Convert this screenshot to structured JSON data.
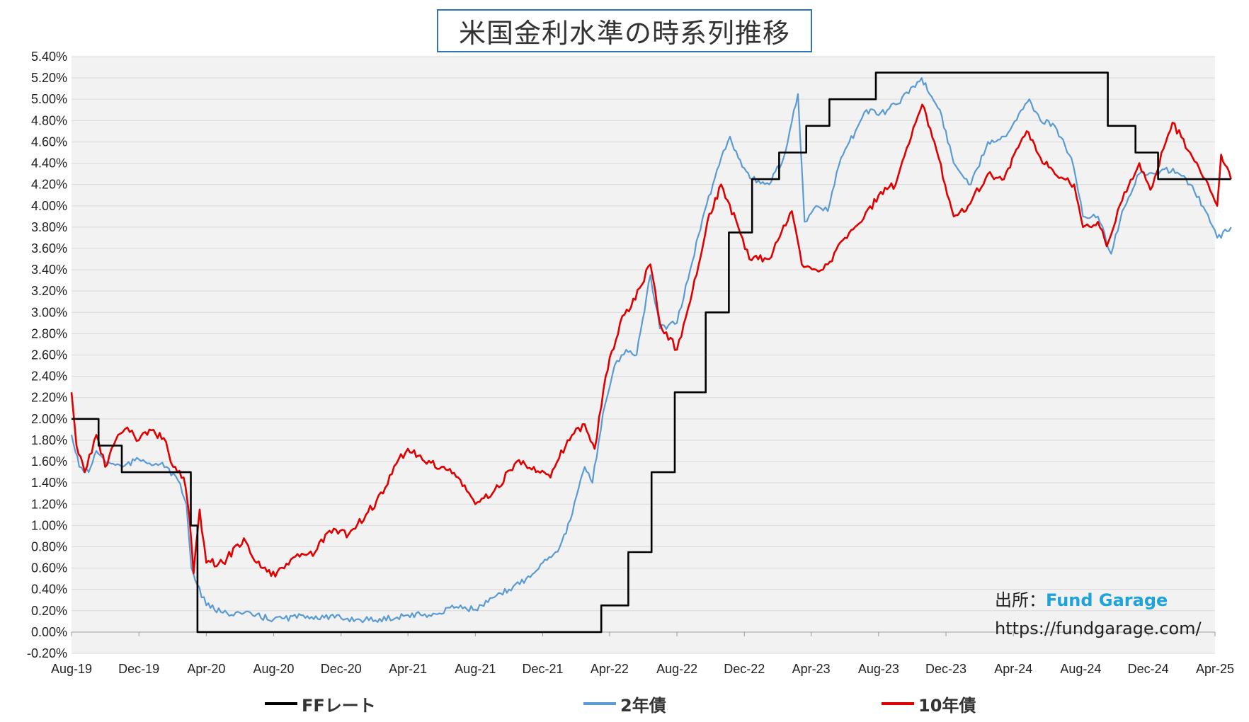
{
  "chart_data": {
    "type": "line",
    "title": "米国金利水準の時系列推移",
    "y_ticks": [
      "5.40%",
      "5.20%",
      "5.00%",
      "4.80%",
      "4.60%",
      "4.40%",
      "4.20%",
      "4.00%",
      "3.80%",
      "3.60%",
      "3.40%",
      "3.20%",
      "3.00%",
      "2.80%",
      "2.60%",
      "2.40%",
      "2.20%",
      "2.00%",
      "1.80%",
      "1.60%",
      "1.40%",
      "1.20%",
      "1.00%",
      "0.80%",
      "0.60%",
      "0.40%",
      "0.20%",
      "0.00%",
      "-0.20%"
    ],
    "x_ticks": [
      "Aug-19",
      "Dec-19",
      "Apr-20",
      "Aug-20",
      "Dec-20",
      "Apr-21",
      "Aug-21",
      "Dec-21",
      "Apr-22",
      "Aug-22",
      "Dec-22",
      "Apr-23",
      "Aug-23",
      "Dec-23",
      "Apr-24",
      "Aug-24",
      "Dec-24",
      "Apr-25"
    ],
    "ylim": [
      -0.2,
      5.4
    ],
    "x_range": [
      "2019-08",
      "2025-04"
    ],
    "grid": true,
    "legend_position": "bottom",
    "series": [
      {
        "name": "FFレート",
        "color": "#000000",
        "shape": "step",
        "points": [
          [
            "2019-08-01",
            2.0
          ],
          [
            "2019-09-19",
            1.75
          ],
          [
            "2019-10-31",
            1.5
          ],
          [
            "2020-03-04",
            1.0
          ],
          [
            "2020-03-16",
            0.0
          ],
          [
            "2022-03-17",
            0.25
          ],
          [
            "2022-05-05",
            0.75
          ],
          [
            "2022-06-16",
            1.5
          ],
          [
            "2022-07-28",
            2.25
          ],
          [
            "2022-09-22",
            3.0
          ],
          [
            "2022-11-03",
            3.75
          ],
          [
            "2022-12-15",
            4.25
          ],
          [
            "2023-02-02",
            4.5
          ],
          [
            "2023-03-23",
            4.75
          ],
          [
            "2023-05-04",
            5.0
          ],
          [
            "2023-07-27",
            5.25
          ],
          [
            "2024-09-19",
            4.75
          ],
          [
            "2024-11-08",
            4.5
          ],
          [
            "2024-12-19",
            4.25
          ],
          [
            "2025-04-30",
            4.25
          ]
        ]
      },
      {
        "name": "2年債",
        "color": "#5b9bd5",
        "shape": "line",
        "points": [
          [
            "2019-08-01",
            1.85
          ],
          [
            "2019-08-15",
            1.55
          ],
          [
            "2019-09-01",
            1.5
          ],
          [
            "2019-09-15",
            1.7
          ],
          [
            "2019-10-01",
            1.6
          ],
          [
            "2019-10-15",
            1.58
          ],
          [
            "2019-11-01",
            1.55
          ],
          [
            "2019-12-01",
            1.62
          ],
          [
            "2020-01-01",
            1.58
          ],
          [
            "2020-01-20",
            1.55
          ],
          [
            "2020-02-10",
            1.42
          ],
          [
            "2020-02-25",
            1.2
          ],
          [
            "2020-03-05",
            0.6
          ],
          [
            "2020-03-15",
            0.45
          ],
          [
            "2020-04-01",
            0.25
          ],
          [
            "2020-05-01",
            0.18
          ],
          [
            "2020-06-01",
            0.18
          ],
          [
            "2020-08-01",
            0.12
          ],
          [
            "2020-10-01",
            0.15
          ],
          [
            "2020-12-01",
            0.13
          ],
          [
            "2021-02-01",
            0.11
          ],
          [
            "2021-04-01",
            0.16
          ],
          [
            "2021-06-01",
            0.17
          ],
          [
            "2021-06-20",
            0.25
          ],
          [
            "2021-08-01",
            0.21
          ],
          [
            "2021-10-01",
            0.4
          ],
          [
            "2021-11-01",
            0.5
          ],
          [
            "2021-12-01",
            0.65
          ],
          [
            "2022-01-01",
            0.8
          ],
          [
            "2022-01-20",
            1.05
          ],
          [
            "2022-02-15",
            1.55
          ],
          [
            "2022-03-01",
            1.4
          ],
          [
            "2022-03-20",
            2.05
          ],
          [
            "2022-04-10",
            2.5
          ],
          [
            "2022-05-01",
            2.65
          ],
          [
            "2022-05-20",
            2.6
          ],
          [
            "2022-06-14",
            3.35
          ],
          [
            "2022-07-01",
            2.85
          ],
          [
            "2022-08-01",
            2.9
          ],
          [
            "2022-08-25",
            3.4
          ],
          [
            "2022-09-20",
            3.95
          ],
          [
            "2022-10-20",
            4.45
          ],
          [
            "2022-11-05",
            4.65
          ],
          [
            "2022-11-20",
            4.45
          ],
          [
            "2022-12-15",
            4.25
          ],
          [
            "2023-01-15",
            4.2
          ],
          [
            "2023-02-10",
            4.45
          ],
          [
            "2023-03-08",
            5.05
          ],
          [
            "2023-03-20",
            3.85
          ],
          [
            "2023-04-10",
            4.0
          ],
          [
            "2023-05-01",
            3.95
          ],
          [
            "2023-05-25",
            4.45
          ],
          [
            "2023-06-20",
            4.7
          ],
          [
            "2023-07-10",
            4.9
          ],
          [
            "2023-08-01",
            4.85
          ],
          [
            "2023-09-01",
            4.95
          ],
          [
            "2023-10-18",
            5.2
          ],
          [
            "2023-11-01",
            5.05
          ],
          [
            "2023-11-20",
            4.9
          ],
          [
            "2023-12-15",
            4.4
          ],
          [
            "2024-01-15",
            4.2
          ],
          [
            "2024-02-15",
            4.6
          ],
          [
            "2024-03-15",
            4.65
          ],
          [
            "2024-04-30",
            5.0
          ],
          [
            "2024-05-20",
            4.8
          ],
          [
            "2024-06-15",
            4.75
          ],
          [
            "2024-07-15",
            4.45
          ],
          [
            "2024-08-05",
            3.9
          ],
          [
            "2024-09-01",
            3.9
          ],
          [
            "2024-09-25",
            3.55
          ],
          [
            "2024-10-15",
            3.95
          ],
          [
            "2024-11-15",
            4.3
          ],
          [
            "2024-12-15",
            4.3
          ],
          [
            "2025-01-15",
            4.35
          ],
          [
            "2025-02-15",
            4.2
          ],
          [
            "2025-03-15",
            3.95
          ],
          [
            "2025-04-05",
            3.7
          ],
          [
            "2025-04-30",
            3.8
          ]
        ]
      },
      {
        "name": "10年債",
        "color": "#e00000",
        "shape": "line",
        "points": [
          [
            "2019-08-01",
            2.25
          ],
          [
            "2019-08-10",
            1.75
          ],
          [
            "2019-08-25",
            1.5
          ],
          [
            "2019-09-15",
            1.85
          ],
          [
            "2019-10-01",
            1.55
          ],
          [
            "2019-10-20",
            1.8
          ],
          [
            "2019-11-10",
            1.92
          ],
          [
            "2019-12-01",
            1.8
          ],
          [
            "2019-12-20",
            1.9
          ],
          [
            "2020-01-15",
            1.82
          ],
          [
            "2020-02-01",
            1.55
          ],
          [
            "2020-02-20",
            1.45
          ],
          [
            "2020-03-01",
            1.1
          ],
          [
            "2020-03-09",
            0.55
          ],
          [
            "2020-03-20",
            1.15
          ],
          [
            "2020-04-01",
            0.65
          ],
          [
            "2020-05-01",
            0.65
          ],
          [
            "2020-06-08",
            0.88
          ],
          [
            "2020-07-01",
            0.65
          ],
          [
            "2020-08-04",
            0.52
          ],
          [
            "2020-09-01",
            0.68
          ],
          [
            "2020-10-15",
            0.75
          ],
          [
            "2020-11-10",
            0.95
          ],
          [
            "2020-12-15",
            0.92
          ],
          [
            "2021-01-15",
            1.1
          ],
          [
            "2021-02-15",
            1.3
          ],
          [
            "2021-03-15",
            1.62
          ],
          [
            "2021-04-01",
            1.72
          ],
          [
            "2021-05-01",
            1.6
          ],
          [
            "2021-06-01",
            1.55
          ],
          [
            "2021-07-01",
            1.45
          ],
          [
            "2021-08-01",
            1.2
          ],
          [
            "2021-09-01",
            1.3
          ],
          [
            "2021-10-15",
            1.6
          ],
          [
            "2021-11-15",
            1.55
          ],
          [
            "2021-12-15",
            1.45
          ],
          [
            "2022-01-15",
            1.8
          ],
          [
            "2022-02-15",
            1.95
          ],
          [
            "2022-03-05",
            1.72
          ],
          [
            "2022-03-25",
            2.4
          ],
          [
            "2022-04-20",
            2.9
          ],
          [
            "2022-05-10",
            3.05
          ],
          [
            "2022-06-14",
            3.45
          ],
          [
            "2022-07-01",
            2.9
          ],
          [
            "2022-08-01",
            2.65
          ],
          [
            "2022-08-25",
            3.1
          ],
          [
            "2022-09-25",
            3.85
          ],
          [
            "2022-10-20",
            4.2
          ],
          [
            "2022-11-20",
            3.8
          ],
          [
            "2022-12-10",
            3.5
          ],
          [
            "2023-01-15",
            3.5
          ],
          [
            "2023-02-25",
            3.95
          ],
          [
            "2023-03-15",
            3.45
          ],
          [
            "2023-04-10",
            3.4
          ],
          [
            "2023-05-01",
            3.45
          ],
          [
            "2023-06-01",
            3.7
          ],
          [
            "2023-07-01",
            3.85
          ],
          [
            "2023-08-01",
            4.1
          ],
          [
            "2023-09-01",
            4.2
          ],
          [
            "2023-10-19",
            4.95
          ],
          [
            "2023-11-10",
            4.6
          ],
          [
            "2023-12-15",
            3.9
          ],
          [
            "2024-01-10",
            4.0
          ],
          [
            "2024-02-15",
            4.3
          ],
          [
            "2024-03-15",
            4.25
          ],
          [
            "2024-04-25",
            4.7
          ],
          [
            "2024-05-20",
            4.45
          ],
          [
            "2024-06-15",
            4.3
          ],
          [
            "2024-07-20",
            4.2
          ],
          [
            "2024-08-05",
            3.8
          ],
          [
            "2024-09-01",
            3.85
          ],
          [
            "2024-09-17",
            3.62
          ],
          [
            "2024-10-15",
            4.05
          ],
          [
            "2024-11-15",
            4.4
          ],
          [
            "2024-12-05",
            4.15
          ],
          [
            "2025-01-14",
            4.78
          ],
          [
            "2025-02-15",
            4.5
          ],
          [
            "2025-03-15",
            4.25
          ],
          [
            "2025-04-05",
            4.0
          ],
          [
            "2025-04-12",
            4.48
          ],
          [
            "2025-04-30",
            4.25
          ]
        ]
      }
    ]
  },
  "source": {
    "label": "出所：",
    "brand": "Fund Garage",
    "url": "https://fundgarage.com/"
  }
}
